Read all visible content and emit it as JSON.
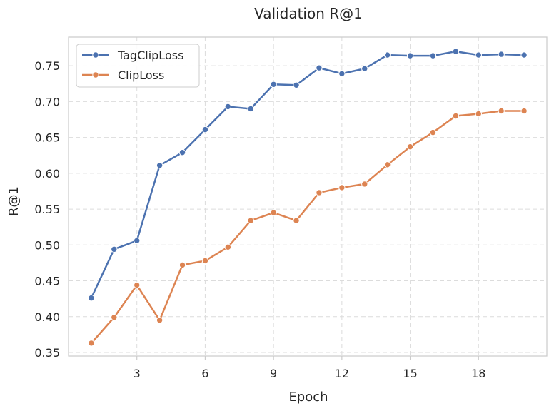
{
  "chart_data": {
    "type": "line",
    "title": "Validation R@1",
    "xlabel": "Epoch",
    "ylabel": "R@1",
    "xlim": [
      0,
      21
    ],
    "ylim": [
      0.345,
      0.79
    ],
    "xticks": [
      3,
      6,
      9,
      12,
      15,
      18
    ],
    "yticks": [
      0.35,
      0.4,
      0.45,
      0.5,
      0.55,
      0.6,
      0.65,
      0.7,
      0.75
    ],
    "grid": true,
    "legend_position": "upper-left",
    "x": [
      1,
      2,
      3,
      4,
      5,
      6,
      7,
      8,
      9,
      10,
      11,
      12,
      13,
      14,
      15,
      16,
      17,
      18,
      19,
      20
    ],
    "series": [
      {
        "name": "TagClipLoss",
        "color": "#4c72b0",
        "values": [
          0.426,
          0.494,
          0.506,
          0.611,
          0.629,
          0.661,
          0.693,
          0.69,
          0.724,
          0.723,
          0.747,
          0.739,
          0.746,
          0.765,
          0.764,
          0.764,
          0.77,
          0.765,
          0.766,
          0.765
        ]
      },
      {
        "name": "ClipLoss",
        "color": "#dd8452",
        "values": [
          0.363,
          0.399,
          0.444,
          0.395,
          0.472,
          0.478,
          0.497,
          0.534,
          0.545,
          0.534,
          0.573,
          0.58,
          0.585,
          0.612,
          0.637,
          0.657,
          0.68,
          0.683,
          0.687,
          0.687
        ]
      }
    ]
  }
}
